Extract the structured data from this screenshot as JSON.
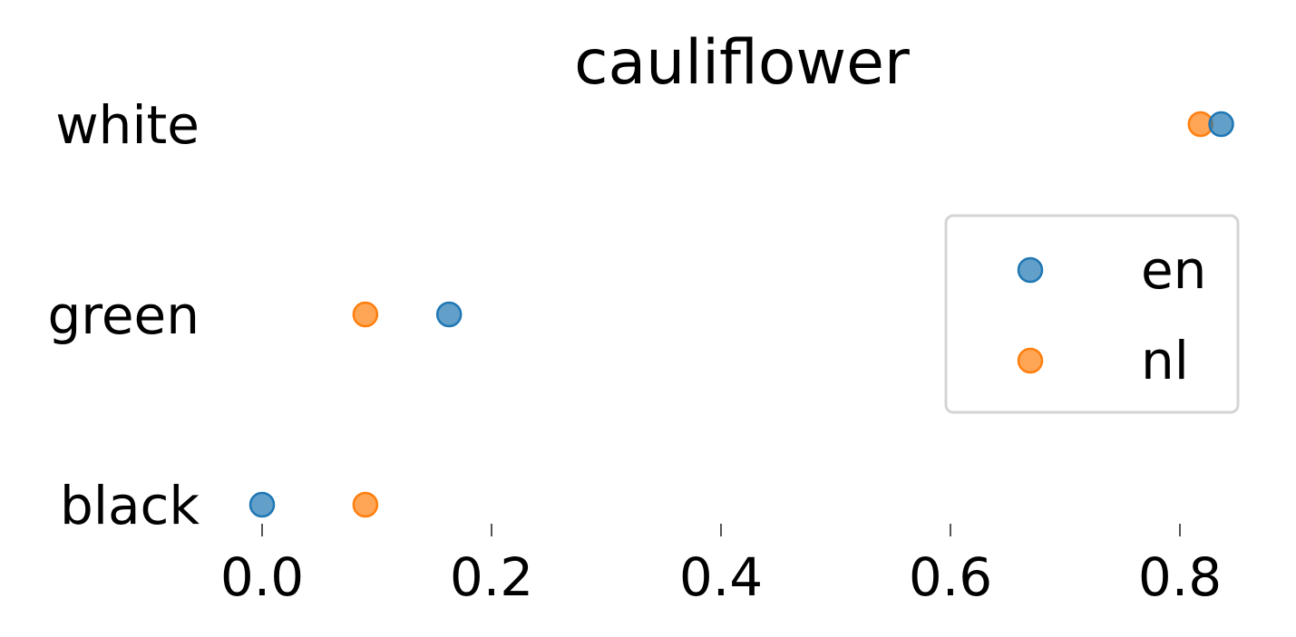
{
  "chart_data": {
    "type": "scatter",
    "title": "cauliflower",
    "categories": [
      "white",
      "green",
      "black"
    ],
    "xticks": [
      "0.0",
      "0.2",
      "0.4",
      "0.6",
      "0.8"
    ],
    "xlim": [
      0.0,
      0.8
    ],
    "series": [
      {
        "name": "en",
        "color": "#1f77b4",
        "values": [
          0.836,
          0.163,
          0.0
        ]
      },
      {
        "name": "nl",
        "color": "#ff7f0e",
        "values": [
          0.818,
          0.09,
          0.09
        ]
      }
    ],
    "legend": {
      "placement": "right",
      "entries": [
        "en",
        "nl"
      ]
    },
    "grid": false
  }
}
